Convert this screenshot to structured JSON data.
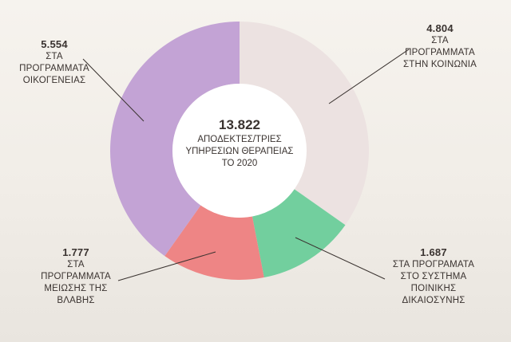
{
  "chart_data": {
    "type": "pie",
    "center": {
      "total": "13.822",
      "caption": "ΑΠΟΔΕΚΤΕΣ/ΤΡΙΕΣ\nΥΠΗΡΕΣΙΩΝ ΘΕΡΑΠΕΙΑΣ\nΤΟ 2020"
    },
    "slices": [
      {
        "value": 4804,
        "value_label": "4.804",
        "label": "ΣΤΑ\nΠΡΟΓΡΑΜΜΑΤΑ\nΣΤΗΝ ΚΟΙΝΩΝΙΑ",
        "color": "#ece2e1"
      },
      {
        "value": 1687,
        "value_label": "1.687",
        "label": "ΣΤΑ ΠΡΟΓΡΑΜΑΤΑ\nΣΤΟ ΣΥΣΤΗΜΑ\nΠΟΙΝΙΚΗΣ\nΔΙΚΑΙΟΣΥΝΗΣ",
        "color": "#72cf9e"
      },
      {
        "value": 1777,
        "value_label": "1.777",
        "label": "ΣΤΑ\nΠΡΟΓΡΑΜΜΑΤΑ\nΜΕΙΩΣΗΣ ΤΗΣ\nΒΛΑΒΗΣ",
        "color": "#ee8585"
      },
      {
        "value": 5554,
        "value_label": "5.554",
        "label": "ΣΤΑ\nΠΡΟΓΡΑΜΜΑΤΑ\nΟΙΚΟΓΕΝΕΙΑΣ",
        "color": "#c3a3d5"
      }
    ]
  }
}
